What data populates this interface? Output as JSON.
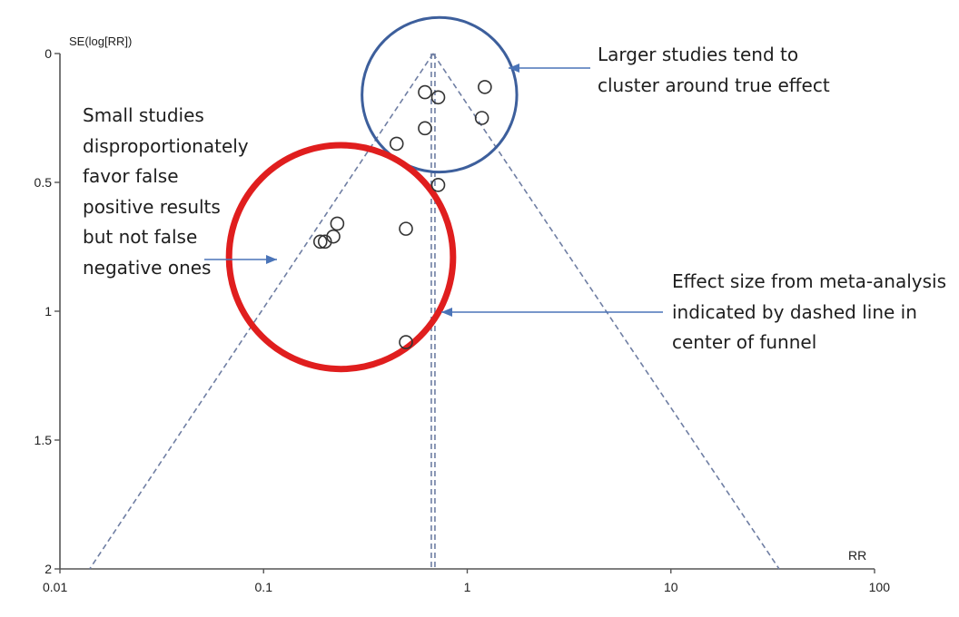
{
  "colors": {
    "background": "#ffffff",
    "axis": "#555555",
    "funnel_line": "#6f7ea3",
    "marker": "#333333",
    "annotation_arrow": "#4a74b8",
    "large_study_circle": "#3d5f9c",
    "small_study_circle": "#e01e1e",
    "text": "#1e1e1e"
  },
  "chart_data": {
    "type": "scatter",
    "chart_kind": "funnel plot",
    "title": "",
    "xlabel": "RR",
    "ylabel": "SE(log[RR])",
    "x_scale": "log",
    "xlim": [
      0.01,
      100
    ],
    "ylim": [
      2,
      0
    ],
    "y_inverted": true,
    "x_ticks": [
      0.01,
      0.1,
      1,
      10,
      100
    ],
    "x_tick_labels": [
      "0.01",
      "0.1",
      "1",
      "10",
      "100"
    ],
    "y_ticks": [
      0,
      0.5,
      1,
      1.5,
      2
    ],
    "y_tick_labels": [
      "0",
      "0.5",
      "1",
      "1.5",
      "2"
    ],
    "grid": false,
    "legend": "none",
    "pooled_effect_rr": 0.68,
    "funnel_apex": {
      "rr": 0.68,
      "se": 0
    },
    "funnel_base_left": {
      "rr": 0.014,
      "se": 2
    },
    "funnel_base_right": {
      "rr": 34,
      "se": 2
    },
    "points": [
      {
        "rr": 0.62,
        "se": 0.15
      },
      {
        "rr": 0.72,
        "se": 0.17
      },
      {
        "rr": 1.22,
        "se": 0.13
      },
      {
        "rr": 1.18,
        "se": 0.25
      },
      {
        "rr": 0.62,
        "se": 0.29
      },
      {
        "rr": 0.45,
        "se": 0.35
      },
      {
        "rr": 0.72,
        "se": 0.51
      },
      {
        "rr": 0.23,
        "se": 0.66
      },
      {
        "rr": 0.5,
        "se": 0.68
      },
      {
        "rr": 0.22,
        "se": 0.71
      },
      {
        "rr": 0.2,
        "se": 0.73
      },
      {
        "rr": 0.19,
        "se": 0.73
      },
      {
        "rr": 0.5,
        "se": 1.12
      }
    ],
    "highlight_large_studies": {
      "rr": 0.73,
      "se": 0.16,
      "radius_decades": 0.38
    },
    "highlight_small_studies": {
      "rr": 0.24,
      "se": 0.79,
      "radius_decades": 0.55
    }
  },
  "annotations": {
    "small_studies": "Small studies\ndisproportionately\nfavor false\npositive results\nbut not false\nnegative ones",
    "large_studies": "Larger studies tend to\ncluster around true effect",
    "effect_size": "Effect size from meta-analysis\nindicated by dashed line in\ncenter of funnel"
  }
}
